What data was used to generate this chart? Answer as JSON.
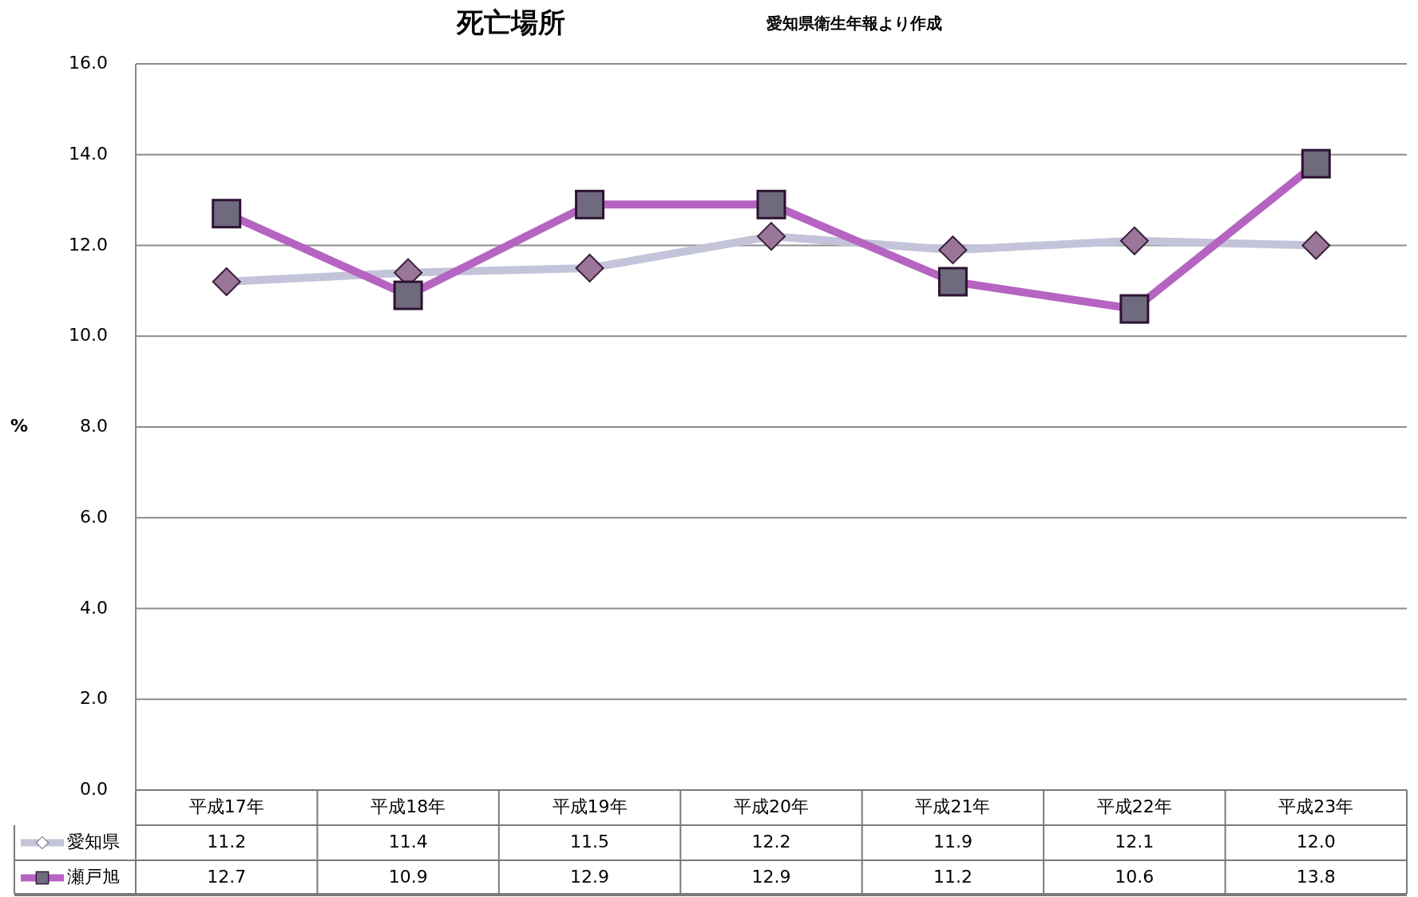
{
  "chart_data": {
    "type": "line",
    "title": "死亡場所",
    "subtitle": "愛知県衛生年報より作成",
    "ylabel": "%",
    "categories": [
      "平成17年",
      "平成18年",
      "平成19年",
      "平成20年",
      "平成21年",
      "平成22年",
      "平成23年"
    ],
    "series": [
      {
        "name": "愛知県",
        "color": "#c3c3d9",
        "marker": "diamond",
        "values": [
          11.2,
          11.4,
          11.5,
          12.2,
          11.9,
          12.1,
          12.0
        ],
        "value_labels": [
          "11.2",
          "11.4",
          "11.5",
          "12.2",
          "11.9",
          "12.1",
          "12.0"
        ]
      },
      {
        "name": "瀬戸旭",
        "color": "#b664c1",
        "marker": "square",
        "values": [
          12.7,
          10.9,
          12.9,
          12.9,
          11.2,
          10.6,
          13.8
        ],
        "value_labels": [
          "12.7",
          "10.9",
          "12.9",
          "12.9",
          "11.2",
          "10.6",
          "13.8"
        ]
      }
    ],
    "ylim": [
      0,
      16
    ],
    "yticks": [
      {
        "value": 0,
        "label": "0.0"
      },
      {
        "value": 2,
        "label": "2.0"
      },
      {
        "value": 4,
        "label": "4.0"
      },
      {
        "value": 6,
        "label": "6.0"
      },
      {
        "value": 8,
        "label": "8.0"
      },
      {
        "value": 10,
        "label": "10.0"
      },
      {
        "value": 12,
        "label": "12.0"
      },
      {
        "value": 14,
        "label": "14.0"
      },
      {
        "value": 16,
        "label": "16.0"
      }
    ],
    "grid": "y",
    "legend": "bottom",
    "line_style": "solid"
  }
}
